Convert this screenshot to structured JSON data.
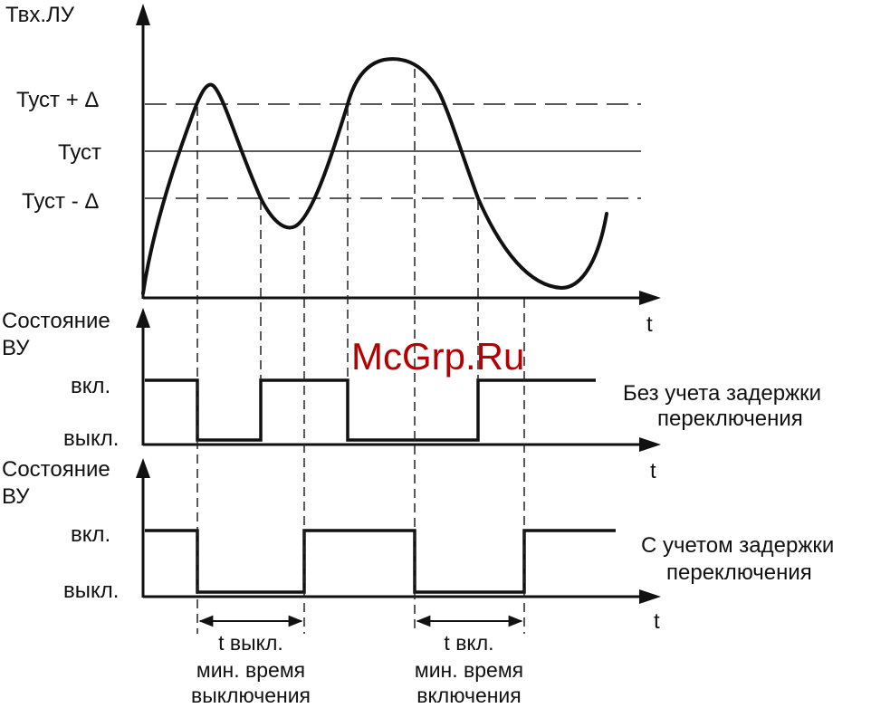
{
  "graph1": {
    "y_label": "Твх.ЛУ",
    "x_label": "t",
    "levels": {
      "upper": "Туст + Δ",
      "mid": "Туст",
      "lower": "Туст - Δ"
    }
  },
  "graph2": {
    "y_label_line1": "Состояние",
    "y_label_line2": "ВУ",
    "x_label": "t",
    "on_label": "вкл.",
    "off_label": "выкл.",
    "caption_line1": "Без учета задержки",
    "caption_line2": "переключения"
  },
  "graph3": {
    "y_label_line1": "Состояние",
    "y_label_line2": "ВУ",
    "x_label": "t",
    "on_label": "вкл.",
    "off_label": "выкл.",
    "caption_line1": "С учетом задержки",
    "caption_line2": "переключения"
  },
  "intervals": {
    "off_interval": {
      "line1": "t выкл.",
      "line2": "мин. время",
      "line3": "выключения"
    },
    "on_interval": {
      "line1": "t вкл.",
      "line2": "мин. время",
      "line3": "включения"
    }
  },
  "watermark": "McGrp.Ru",
  "colors": {
    "ink": "#111111",
    "watermark": "#b40000"
  }
}
